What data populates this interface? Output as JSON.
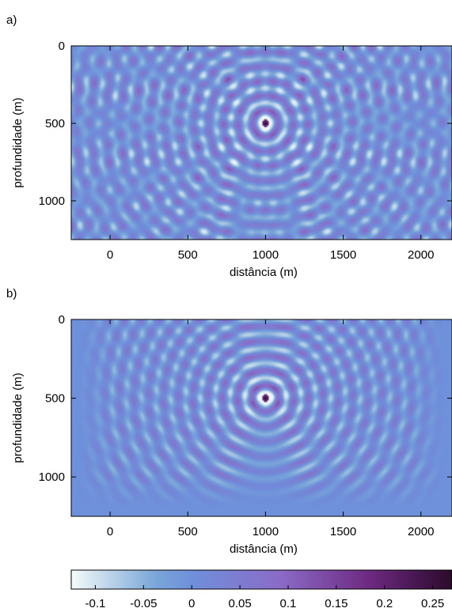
{
  "chart_data": [
    {
      "type": "heatmap",
      "panel_label": "a)",
      "xlabel": "distância (m)",
      "ylabel": "profundidade (m)",
      "xlim": [
        -250,
        2200
      ],
      "ylim": [
        1250,
        0
      ],
      "xticks": [
        0,
        500,
        1000,
        1500,
        2000
      ],
      "yticks": [
        0,
        500,
        1000
      ],
      "xtick_labels": [
        "0",
        "500",
        "1000",
        "1500",
        "2000"
      ],
      "ytick_labels": [
        "0",
        "500",
        "1000"
      ],
      "source": {
        "x": 1000,
        "z": 500
      },
      "description": "wavefield snapshot with reflections from the edges",
      "grid": false
    },
    {
      "type": "heatmap",
      "panel_label": "b)",
      "xlabel": "distância (m)",
      "ylabel": "profundidade (m)",
      "xlim": [
        -250,
        2200
      ],
      "ylim": [
        1250,
        0
      ],
      "xticks": [
        0,
        500,
        1000,
        1500,
        2000
      ],
      "yticks": [
        0,
        500,
        1000
      ],
      "xtick_labels": [
        "0",
        "500",
        "1000",
        "1500",
        "2000"
      ],
      "ytick_labels": [
        "0",
        "500",
        "1000"
      ],
      "source": {
        "x": 1000,
        "z": 500
      },
      "description": "wavefield snapshot with absorbing boundaries",
      "grid": false
    }
  ],
  "colorbar": {
    "vmin": -0.125,
    "vmax": 0.27,
    "ticks": [
      -0.1,
      -0.05,
      0,
      0.05,
      0.1,
      0.15,
      0.2,
      0.25
    ],
    "tick_labels": [
      "-0.1",
      "-0.05",
      "0",
      "0.05",
      "0.1",
      "0.15",
      "0.2",
      "0.25"
    ],
    "colors": [
      "#f4fbf9",
      "#7aa6d8",
      "#6f8fdb",
      "#8a6bc7",
      "#6e2a82",
      "#2b0a2c"
    ]
  }
}
